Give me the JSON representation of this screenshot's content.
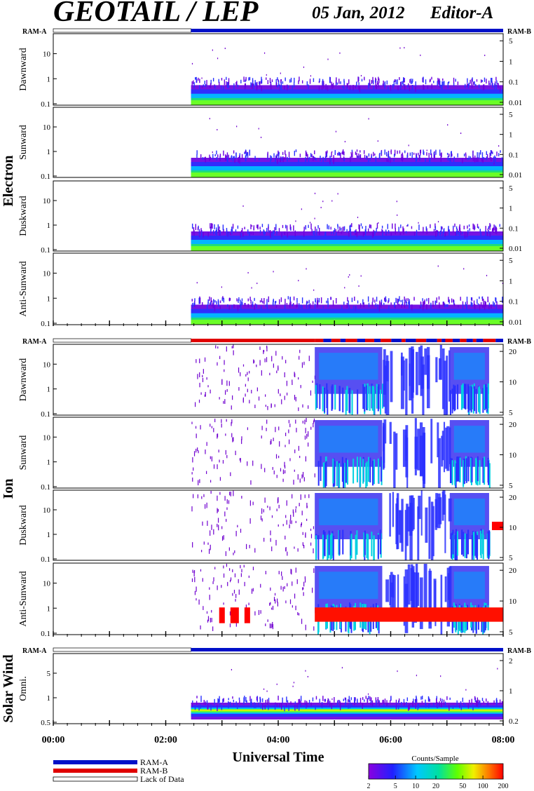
{
  "title": "GEOTAIL / LEP",
  "date": "05 Jan, 2012",
  "editor": "Editor-A",
  "ram_a_label": "RAM-A",
  "ram_b_label": "RAM-B",
  "xlabel": "Universal Time",
  "x_ticks": [
    "00:00",
    "02:00",
    "04:00",
    "06:00",
    "08:00"
  ],
  "groups": {
    "electron": "Electron",
    "ion": "Ion",
    "solar_wind": "Solar Wind"
  },
  "legend": {
    "ram_a": "RAM-A",
    "ram_b": "RAM-B",
    "lack": "Lack of Data"
  },
  "colorbar": {
    "title": "Counts/Sample",
    "ticks": [
      "2",
      "5",
      "10",
      "20",
      "50",
      "100",
      "200"
    ]
  },
  "colors": {
    "ram_a": "#0010c8",
    "ram_b": "#e00000",
    "lack": "#ffffff"
  },
  "chart_data": {
    "type": "heatmap",
    "x_range_hours": [
      0,
      8
    ],
    "data_start_hour": 2.45,
    "panels": [
      {
        "id": "e1",
        "group": "electron",
        "label": "Dawnward",
        "left_ticks": [
          "10",
          "1",
          "0.1"
        ],
        "right_ticks": [
          "5",
          "1",
          "0.1",
          "0.01"
        ],
        "kind": "electron"
      },
      {
        "id": "e2",
        "group": "electron",
        "label": "Sunward",
        "left_ticks": [
          "10",
          "1",
          "0.1"
        ],
        "right_ticks": [
          "5",
          "1",
          "0.1",
          "0.01"
        ],
        "kind": "electron"
      },
      {
        "id": "e3",
        "group": "electron",
        "label": "Duskward",
        "left_ticks": [
          "10",
          "1",
          "0.1"
        ],
        "right_ticks": [
          "5",
          "1",
          "0.1",
          "0.01"
        ],
        "kind": "electron"
      },
      {
        "id": "e4",
        "group": "electron",
        "label": "Anti-Sunward",
        "left_ticks": [
          "10",
          "1",
          "0.1"
        ],
        "right_ticks": [
          "5",
          "1",
          "0.1",
          "0.01"
        ],
        "kind": "electron"
      },
      {
        "id": "i1",
        "group": "ion",
        "label": "Dawnward",
        "left_ticks": [
          "10",
          "1",
          "0.1"
        ],
        "right_ticks": [
          "20",
          "10",
          "5"
        ],
        "kind": "ion"
      },
      {
        "id": "i2",
        "group": "ion",
        "label": "Sunward",
        "left_ticks": [
          "10",
          "1",
          "0.1"
        ],
        "right_ticks": [
          "20",
          "10",
          "5"
        ],
        "kind": "ion"
      },
      {
        "id": "i3",
        "group": "ion",
        "label": "Duskward",
        "left_ticks": [
          "10",
          "1",
          "0.1"
        ],
        "right_ticks": [
          "20",
          "10",
          "5"
        ],
        "kind": "ion"
      },
      {
        "id": "i4",
        "group": "ion",
        "label": "Anti-Sunward",
        "left_ticks": [
          "10",
          "1",
          "0.1"
        ],
        "right_ticks": [
          "20",
          "10",
          "5"
        ],
        "kind": "ion"
      },
      {
        "id": "s1",
        "group": "solar_wind",
        "label": "Omni.",
        "left_ticks": [
          "5",
          "1",
          "0.5"
        ],
        "right_ticks": [
          "2",
          "1",
          "0.2"
        ],
        "kind": "sw"
      }
    ],
    "ram_bars": [
      {
        "segments": [
          {
            "start": 0,
            "end": 2.45,
            "mode": "lack"
          },
          {
            "start": 2.45,
            "end": 8,
            "mode": "ram_a"
          }
        ]
      },
      {
        "segments": [
          {
            "start": 0,
            "end": 2.45,
            "mode": "lack"
          },
          {
            "start": 2.45,
            "end": 4.65,
            "mode": "ram_b"
          },
          {
            "start": 4.65,
            "end": 8,
            "mode": "mixed"
          }
        ]
      },
      {
        "segments": [
          {
            "start": 0,
            "end": 2.45,
            "mode": "lack"
          },
          {
            "start": 2.45,
            "end": 8,
            "mode": "ram_a"
          }
        ]
      }
    ]
  }
}
